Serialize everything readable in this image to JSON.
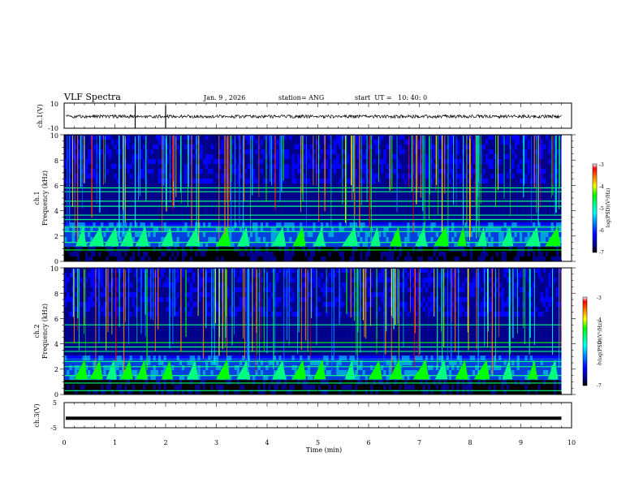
{
  "header": {
    "title": "VLF Spectra",
    "date": "Jan. 9 , 2026",
    "station": "station= ANG",
    "start_ut": "start  UT =   10: 40: 0"
  },
  "chart_data": [
    {
      "type": "line",
      "panel": "ch1-waveform",
      "ylabel": "ch.1(V)",
      "ylim": [
        -10,
        10
      ],
      "y_ticks": [
        "10",
        "-10"
      ],
      "series": [
        {
          "values_approx_v": 0
        }
      ],
      "color": "#000000"
    },
    {
      "type": "heatmap",
      "panel": "ch1-spectrogram",
      "ylabel_line1": "ch.1",
      "ylabel_line2": "Frequency (kHz)",
      "ylim": [
        0,
        10
      ],
      "y_ticks": [
        "0",
        "2",
        "4",
        "6",
        "8",
        "10"
      ],
      "xlim": [
        0,
        10
      ],
      "data_end_min": 9.8,
      "colorbar": {
        "label": "log(PSD)(V²/Hz)",
        "range": [
          -7,
          -3
        ],
        "ticks": [
          "-3",
          "-4",
          "-5",
          "-6",
          "-7"
        ]
      },
      "narrowband_lines_khz": [
        0.9,
        1.5,
        2.35,
        2.7,
        3.3,
        3.65,
        4.35,
        4.75,
        5.5,
        5.8
      ],
      "chorus_band_khz": [
        1.0,
        3.0
      ],
      "chorus_burst_times_min": [
        0.3,
        0.6,
        0.9,
        1.2,
        1.5,
        2.0,
        2.5,
        3.1,
        3.5,
        4.2,
        4.6,
        5.0,
        5.6,
        6.1,
        6.5,
        7.0,
        7.4,
        7.8,
        8.2,
        8.7,
        9.2,
        9.6
      ]
    },
    {
      "type": "heatmap",
      "panel": "ch2-spectrogram",
      "ylabel_line1": "ch.2",
      "ylabel_line2": "Frequency (kHz)",
      "ylim": [
        0,
        10
      ],
      "y_ticks": [
        "0",
        "2",
        "4",
        "6",
        "8",
        "10"
      ],
      "xlim": [
        0,
        10
      ],
      "data_end_min": 9.8,
      "colorbar": {
        "label": "log(PSD)(V²/Hz)",
        "range": [
          -7,
          -3
        ],
        "ticks": [
          "-3",
          "-4",
          "-5",
          "-6",
          "-7"
        ]
      },
      "narrowband_lines_khz": [
        0.3,
        0.9,
        1.5,
        2.2,
        2.6,
        3.4,
        3.75,
        4.1,
        5.5
      ],
      "chorus_band_khz": [
        1.0,
        3.0
      ],
      "chorus_burst_times_min": [
        0.3,
        0.6,
        0.9,
        1.2,
        1.5,
        2.0,
        2.5,
        3.1,
        3.5,
        4.2,
        4.6,
        5.0,
        5.6,
        6.1,
        6.5,
        7.0,
        7.4,
        7.8,
        8.2,
        8.7,
        9.2,
        9.6
      ]
    },
    {
      "type": "line",
      "panel": "ch3-waveform",
      "ylabel": "ch.3(V)",
      "ylim": [
        -5,
        5
      ],
      "y_ticks": [
        "5",
        "-5"
      ],
      "series": [
        {
          "values_approx_v": -1.2
        }
      ],
      "color": "#000000"
    }
  ],
  "x_axis": {
    "label": "Time (min)",
    "ticks": [
      "0",
      "1",
      "2",
      "3",
      "4",
      "5",
      "6",
      "7",
      "8",
      "9",
      "10"
    ],
    "range": [
      0,
      10
    ]
  },
  "colormap": [
    "#000000",
    "#00008b",
    "#0000ff",
    "#0080ff",
    "#00ffff",
    "#00ff80",
    "#00ff00",
    "#ffff00",
    "#ff8000",
    "#ff0000",
    "#ffffff"
  ]
}
